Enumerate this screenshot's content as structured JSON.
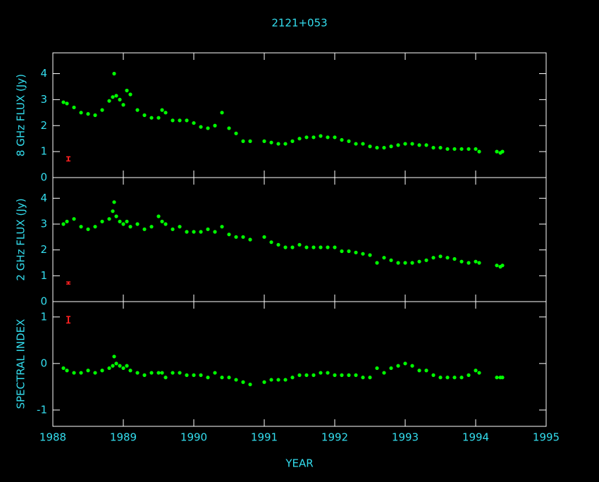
{
  "figure": {
    "title": "2121+053",
    "xlabel": "YEAR"
  },
  "chart_data": [
    {
      "type": "scatter",
      "ylabel": "8 GHz FLUX (Jy)",
      "color": "#00ff00",
      "xlim": [
        1988,
        1995
      ],
      "xticks": [
        1988,
        1989,
        1990,
        1991,
        1992,
        1993,
        1994,
        1995
      ],
      "ylim": [
        0,
        4.8
      ],
      "yticks": [
        0,
        1,
        2,
        3,
        4
      ],
      "x": [
        1988.15,
        1988.2,
        1988.3,
        1988.4,
        1988.5,
        1988.6,
        1988.7,
        1988.8,
        1988.85,
        1988.9,
        1988.95,
        1989.0,
        1989.05,
        1989.1,
        1989.2,
        1989.3,
        1989.4,
        1989.5,
        1989.55,
        1989.6,
        1989.7,
        1989.8,
        1989.9,
        1990.0,
        1990.1,
        1990.2,
        1990.3,
        1990.4,
        1990.5,
        1990.6,
        1990.7,
        1990.8,
        1991.0,
        1991.1,
        1991.2,
        1991.3,
        1991.4,
        1991.5,
        1991.6,
        1991.7,
        1991.8,
        1991.9,
        1992.0,
        1992.1,
        1992.2,
        1992.3,
        1992.4,
        1992.5,
        1992.6,
        1992.7,
        1992.8,
        1992.9,
        1993.0,
        1993.1,
        1993.2,
        1993.3,
        1993.4,
        1993.5,
        1993.6,
        1993.7,
        1993.8,
        1993.9,
        1994.0,
        1994.05,
        1994.3,
        1994.35,
        1994.38,
        1988.87
      ],
      "values": [
        2.9,
        2.85,
        2.7,
        2.5,
        2.45,
        2.4,
        2.6,
        2.95,
        3.1,
        3.15,
        3.0,
        2.8,
        3.35,
        3.2,
        2.6,
        2.4,
        2.3,
        2.3,
        2.6,
        2.5,
        2.2,
        2.2,
        2.2,
        2.1,
        1.95,
        1.9,
        2.0,
        2.5,
        1.9,
        1.7,
        1.4,
        1.4,
        1.4,
        1.35,
        1.3,
        1.3,
        1.4,
        1.5,
        1.55,
        1.55,
        1.6,
        1.55,
        1.55,
        1.45,
        1.4,
        1.3,
        1.3,
        1.2,
        1.15,
        1.15,
        1.2,
        1.25,
        1.3,
        1.3,
        1.25,
        1.25,
        1.15,
        1.15,
        1.1,
        1.1,
        1.1,
        1.1,
        1.1,
        1.0,
        1.0,
        0.95,
        1.0,
        4.0
      ],
      "error_bar": {
        "x": 1988.22,
        "value": 0.72,
        "error": 0.08,
        "color": "#ff2020"
      }
    },
    {
      "type": "scatter",
      "ylabel": "2 GHz FLUX (Jy)",
      "color": "#00ff00",
      "xlim": [
        1988,
        1995
      ],
      "xticks": [
        1988,
        1989,
        1990,
        1991,
        1992,
        1993,
        1994,
        1995
      ],
      "ylim": [
        0,
        4.8
      ],
      "yticks": [
        0,
        1,
        2,
        3,
        4
      ],
      "x": [
        1988.15,
        1988.2,
        1988.3,
        1988.4,
        1988.5,
        1988.6,
        1988.7,
        1988.8,
        1988.85,
        1988.9,
        1988.95,
        1989.0,
        1989.05,
        1989.1,
        1989.2,
        1989.3,
        1989.4,
        1989.5,
        1989.55,
        1989.6,
        1989.7,
        1989.8,
        1989.9,
        1990.0,
        1990.1,
        1990.2,
        1990.3,
        1990.4,
        1990.5,
        1990.6,
        1990.7,
        1990.8,
        1991.0,
        1991.1,
        1991.2,
        1991.3,
        1991.4,
        1991.5,
        1991.6,
        1991.7,
        1991.8,
        1991.9,
        1992.0,
        1992.1,
        1992.2,
        1992.3,
        1992.4,
        1992.5,
        1992.6,
        1992.7,
        1992.8,
        1992.9,
        1993.0,
        1993.1,
        1993.2,
        1993.3,
        1993.4,
        1993.5,
        1993.6,
        1993.7,
        1993.8,
        1993.9,
        1994.0,
        1994.05,
        1994.3,
        1994.35,
        1994.38,
        1988.87
      ],
      "values": [
        3.0,
        3.1,
        3.2,
        2.9,
        2.8,
        2.9,
        3.1,
        3.2,
        3.5,
        3.3,
        3.1,
        3.0,
        3.1,
        2.9,
        3.0,
        2.8,
        2.9,
        3.3,
        3.1,
        3.0,
        2.8,
        2.9,
        2.7,
        2.7,
        2.7,
        2.8,
        2.7,
        2.9,
        2.6,
        2.5,
        2.5,
        2.4,
        2.5,
        2.3,
        2.2,
        2.1,
        2.1,
        2.2,
        2.1,
        2.1,
        2.1,
        2.1,
        2.1,
        1.95,
        1.95,
        1.9,
        1.85,
        1.8,
        1.5,
        1.7,
        1.6,
        1.5,
        1.5,
        1.5,
        1.55,
        1.6,
        1.7,
        1.75,
        1.7,
        1.65,
        1.55,
        1.5,
        1.55,
        1.5,
        1.4,
        1.35,
        1.4,
        3.85
      ],
      "error_bar": {
        "x": 1988.22,
        "value": 0.72,
        "error": 0.04,
        "color": "#ff2020"
      }
    },
    {
      "type": "scatter",
      "ylabel": "SPECTRAL INDEX",
      "color": "#00ff00",
      "xlim": [
        1988,
        1995
      ],
      "xticks": [
        1988,
        1989,
        1990,
        1991,
        1992,
        1993,
        1994,
        1995
      ],
      "ylim": [
        -1.35,
        1.33
      ],
      "yticks": [
        -1,
        0,
        1
      ],
      "x": [
        1988.15,
        1988.2,
        1988.3,
        1988.4,
        1988.5,
        1988.6,
        1988.7,
        1988.8,
        1988.85,
        1988.9,
        1988.95,
        1989.0,
        1989.05,
        1989.1,
        1989.2,
        1989.3,
        1989.4,
        1989.5,
        1989.55,
        1989.6,
        1989.7,
        1989.8,
        1989.9,
        1990.0,
        1990.1,
        1990.2,
        1990.3,
        1990.4,
        1990.5,
        1990.6,
        1990.7,
        1990.8,
        1991.0,
        1991.1,
        1991.2,
        1991.3,
        1991.4,
        1991.5,
        1991.6,
        1991.7,
        1991.8,
        1991.9,
        1992.0,
        1992.1,
        1992.2,
        1992.3,
        1992.4,
        1992.5,
        1992.6,
        1992.7,
        1992.8,
        1992.9,
        1993.0,
        1993.1,
        1993.2,
        1993.3,
        1993.4,
        1993.5,
        1993.6,
        1993.7,
        1993.8,
        1993.9,
        1994.0,
        1994.05,
        1994.3,
        1994.35,
        1994.38,
        1988.87
      ],
      "values": [
        -0.1,
        -0.15,
        -0.2,
        -0.2,
        -0.15,
        -0.2,
        -0.15,
        -0.1,
        -0.05,
        0.0,
        -0.05,
        -0.1,
        -0.05,
        -0.15,
        -0.2,
        -0.25,
        -0.2,
        -0.2,
        -0.2,
        -0.3,
        -0.2,
        -0.2,
        -0.25,
        -0.25,
        -0.25,
        -0.3,
        -0.2,
        -0.3,
        -0.3,
        -0.35,
        -0.4,
        -0.45,
        -0.4,
        -0.35,
        -0.35,
        -0.35,
        -0.3,
        -0.25,
        -0.25,
        -0.25,
        -0.2,
        -0.2,
        -0.25,
        -0.25,
        -0.25,
        -0.25,
        -0.3,
        -0.3,
        -0.1,
        -0.2,
        -0.1,
        -0.05,
        0.0,
        -0.05,
        -0.15,
        -0.15,
        -0.25,
        -0.3,
        -0.3,
        -0.3,
        -0.3,
        -0.25,
        -0.15,
        -0.2,
        -0.3,
        -0.3,
        -0.3,
        0.15
      ],
      "error_bar": {
        "x": 1988.22,
        "value": 0.94,
        "error": 0.07,
        "color": "#ff2020"
      }
    }
  ]
}
